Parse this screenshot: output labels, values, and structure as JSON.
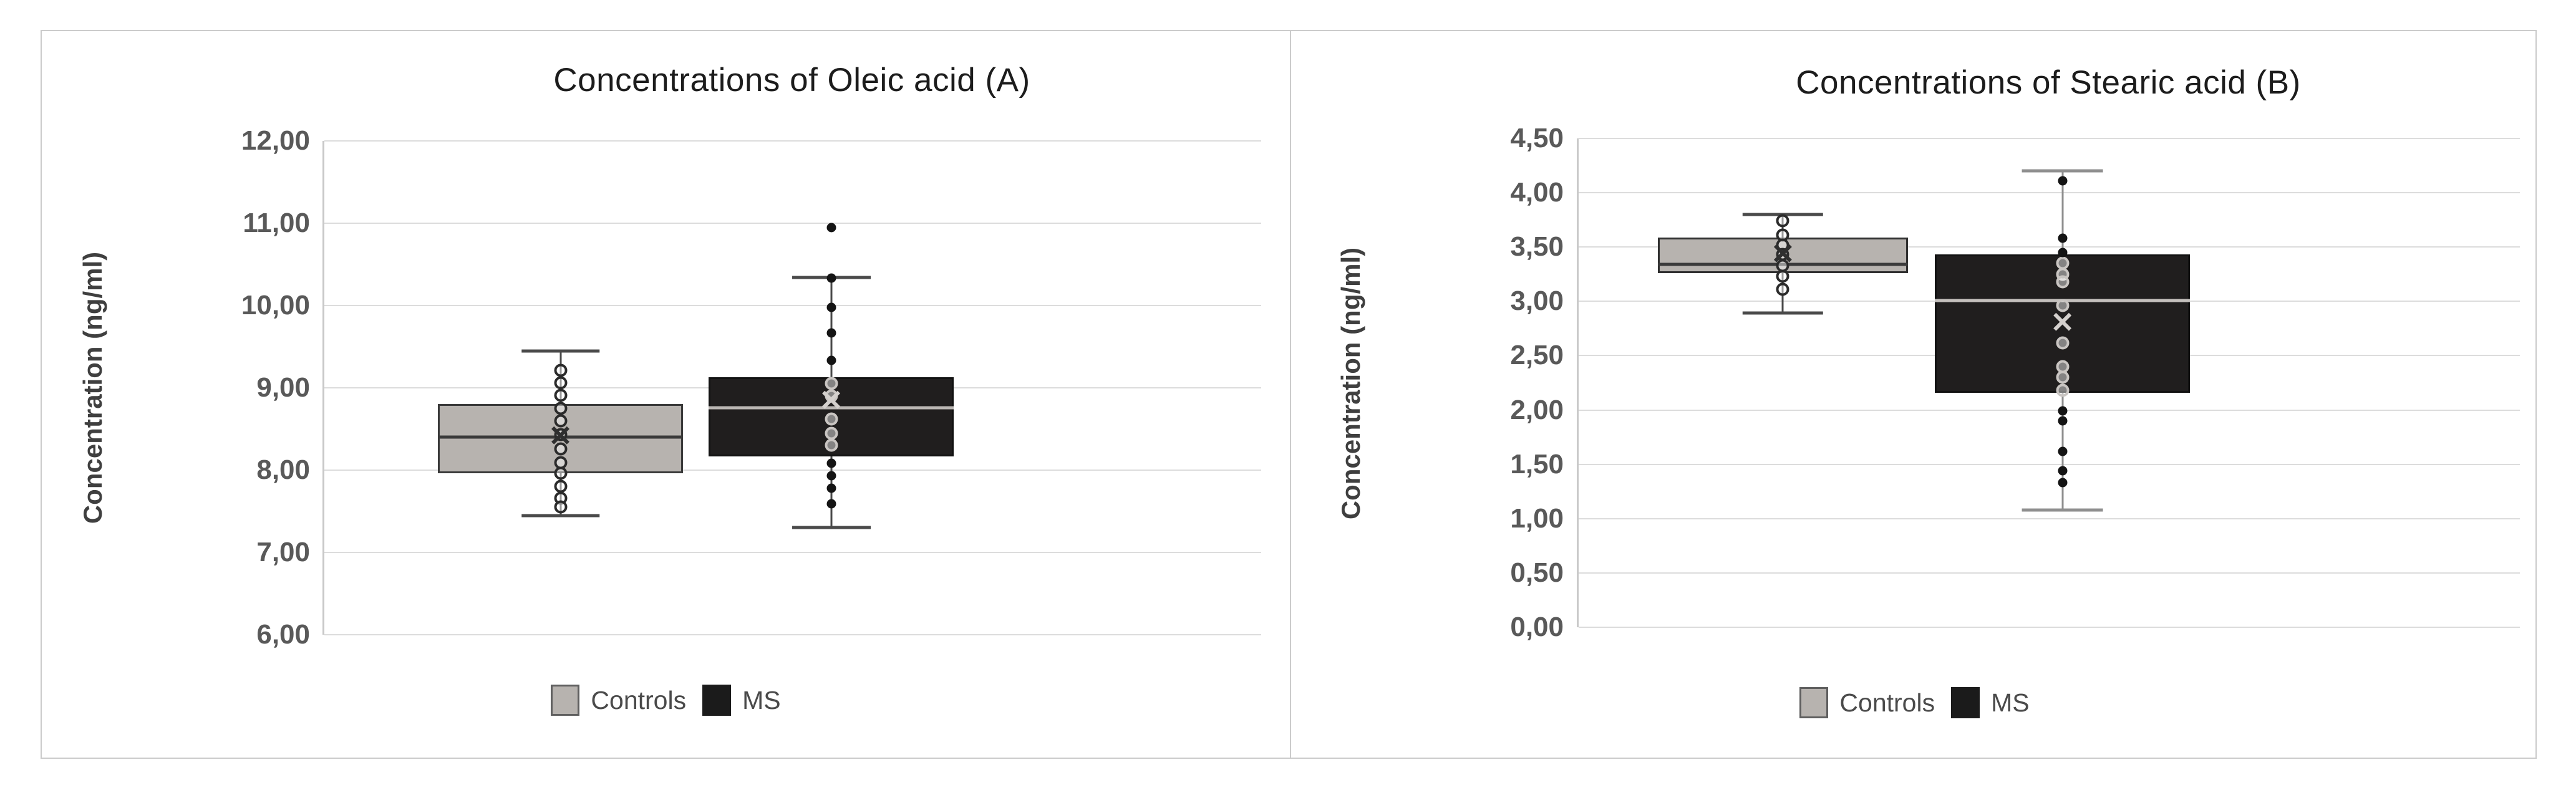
{
  "figure": {
    "background": "#ffffff",
    "frame_border_color": "#cbcbcb"
  },
  "icons": {
    "mean_marker": "✕"
  },
  "legend": [
    {
      "label": "Controls",
      "color": "#b7b3af",
      "border": "#5f5f5f"
    },
    {
      "label": "MS",
      "color": "#1b1b1b",
      "border": "#1b1b1b"
    }
  ],
  "chart_data": [
    {
      "type": "box",
      "title": "Concentrations of Oleic acid (A)",
      "ylabel": "Concentration (ng/ml)",
      "ylim": [
        6,
        12
      ],
      "grid": true,
      "legend_position": "bottom",
      "yticks": [
        {
          "label": "12,00",
          "value": 12
        },
        {
          "label": "11,00",
          "value": 11
        },
        {
          "label": "10,00",
          "value": 10
        },
        {
          "label": "9,00",
          "value": 9
        },
        {
          "label": "8,00",
          "value": 8
        },
        {
          "label": "7,00",
          "value": 7
        },
        {
          "label": "6,00",
          "value": 6
        }
      ],
      "series": [
        {
          "name": "Controls",
          "x_center_frac": 0.252,
          "box_width_frac": 0.261,
          "cap_width_frac": 0.32,
          "fill": "#b7b3af",
          "border": "#3a3a3a",
          "median_color": "#3a3a3a",
          "whisker_color": "#4a4a4a",
          "mean_color": "#2f2f2f",
          "open_point_color": "#2b2b2b",
          "filled_point_color": "#141414",
          "whisker_low": 7.45,
          "q1": 7.96,
          "median": 8.4,
          "q3": 8.8,
          "whisker_high": 9.45,
          "mean": 8.41,
          "points_open": [
            9.21,
            9.06,
            8.91,
            8.75,
            8.6,
            8.43,
            8.26,
            8.09,
            7.96,
            7.8,
            7.66,
            7.55
          ],
          "points_filled": []
        },
        {
          "name": "MS",
          "x_center_frac": 0.541,
          "box_width_frac": 0.262,
          "cap_width_frac": 0.32,
          "fill": "#201e1e",
          "border": "#121212",
          "median_color": "#bab6b3",
          "whisker_color": "#4a4a4a",
          "mean_color": "#d4d0cd",
          "open_point_color": "#c9c5c2",
          "filled_point_color": "#141414",
          "whisker_low": 7.3,
          "q1": 8.17,
          "median": 8.76,
          "q3": 9.13,
          "whisker_high": 10.34,
          "mean": 8.84,
          "points_open": [
            9.05,
            8.9,
            8.62,
            8.45,
            8.3
          ],
          "points_filled": [
            10.95,
            10.33,
            9.98,
            9.67,
            9.33,
            8.08,
            7.93,
            7.78,
            7.59
          ]
        }
      ]
    },
    {
      "type": "box",
      "title": "Concentrations of Stearic acid (B)",
      "ylabel": "Concentration (ng/ml)",
      "ylim": [
        0,
        4.5
      ],
      "grid": true,
      "legend_position": "bottom",
      "yticks": [
        {
          "label": "4,50",
          "value": 4.5
        },
        {
          "label": "4,00",
          "value": 4.0
        },
        {
          "label": "3,50",
          "value": 3.5
        },
        {
          "label": "3,00",
          "value": 3.0
        },
        {
          "label": "2,50",
          "value": 2.5
        },
        {
          "label": "2,00",
          "value": 2.0
        },
        {
          "label": "1,50",
          "value": 1.5
        },
        {
          "label": "1,00",
          "value": 1.0
        },
        {
          "label": "0,50",
          "value": 0.5
        },
        {
          "label": "0,00",
          "value": 0.0
        }
      ],
      "series": [
        {
          "name": "Controls",
          "x_center_frac": 0.217,
          "box_width_frac": 0.266,
          "cap_width_frac": 0.32,
          "fill": "#b7b3af",
          "border": "#303030",
          "median_color": "#3a3a3a",
          "whisker_color": "#4a4a4a",
          "mean_color": "#2f2f2f",
          "open_point_color": "#2b2b2b",
          "filled_point_color": "#141414",
          "whisker_low": 2.89,
          "q1": 3.26,
          "median": 3.34,
          "q3": 3.59,
          "whisker_high": 3.8,
          "mean": 3.43,
          "points_open": [
            3.74,
            3.61,
            3.52,
            3.43,
            3.33,
            3.23,
            3.11
          ],
          "points_filled": []
        },
        {
          "name": "MS",
          "x_center_frac": 0.514,
          "box_width_frac": 0.271,
          "cap_width_frac": 0.32,
          "fill": "#201e1e",
          "border": "#121212",
          "median_color": "#c4c0bd",
          "whisker_color": "#8f8f8f",
          "mean_color": "#d4d0cd",
          "open_point_color": "#c9c5c2",
          "filled_point_color": "#141414",
          "whisker_low": 1.08,
          "q1": 2.16,
          "median": 3.01,
          "q3": 3.43,
          "whisker_high": 4.2,
          "mean": 2.8,
          "points_open": [
            3.35,
            3.25,
            3.18,
            2.96,
            2.62,
            2.4,
            2.3,
            2.18
          ],
          "points_filled": [
            4.11,
            3.58,
            3.45,
            1.99,
            1.9,
            1.62,
            1.44,
            1.33
          ]
        }
      ]
    }
  ]
}
